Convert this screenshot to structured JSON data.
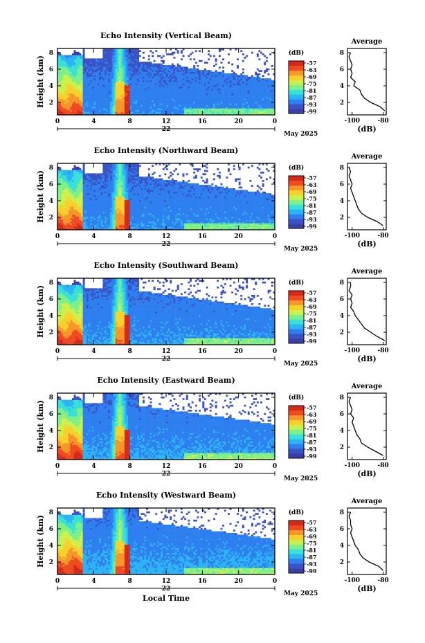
{
  "chart_data": {
    "type": "heatmap",
    "date_label": "May 2025",
    "day_label": "22",
    "xlabel_bottom": "Local Time",
    "x_ticks": [
      "0",
      "4",
      "8",
      "12",
      "16",
      "20",
      "0"
    ],
    "y_ticks": [
      "2",
      "4",
      "6",
      "8"
    ],
    "ylabel": "Height (km)",
    "ylim": [
      0.5,
      8.5
    ],
    "xlim": [
      0,
      24
    ],
    "colorbar_title": "(dB)",
    "colorbar_ticks": [
      "-57",
      "-63",
      "-69",
      "-75",
      "-81",
      "-87",
      "-93",
      "-99"
    ],
    "colorbar_colors": [
      "#3a3fa8",
      "#3a52c4",
      "#2e7ff0",
      "#2db4f2",
      "#39e0d8",
      "#7df08a",
      "#cdf04d",
      "#f7d02c",
      "#f7962a",
      "#ef4b22",
      "#d42a1a"
    ],
    "average_title": "Average",
    "average_xlabel": "(dB)",
    "average_xticks": [
      "-100",
      "-80"
    ],
    "average_xlim": [
      -103,
      -78
    ],
    "panels": [
      {
        "title": "Echo Intensity (Vertical Beam)",
        "average_profile": {
          "height_km": [
            1.0,
            1.5,
            2.0,
            2.5,
            3.0,
            3.5,
            4.0,
            4.5,
            5.0,
            5.5,
            6.0,
            6.5,
            7.0,
            7.5,
            8.0
          ],
          "db": [
            -79,
            -82,
            -88,
            -92,
            -94,
            -95,
            -99,
            -98,
            -101,
            -100,
            -101,
            -100,
            -101,
            -102,
            -101
          ]
        }
      },
      {
        "title": "Echo Intensity (Northward Beam)",
        "average_profile": {
          "height_km": [
            1.0,
            1.5,
            2.0,
            2.5,
            3.0,
            3.5,
            4.0,
            4.5,
            5.0,
            5.5,
            6.0,
            6.5,
            7.0,
            7.5,
            8.0
          ],
          "db": [
            -80,
            -84,
            -90,
            -94,
            -96,
            -97,
            -98,
            -99,
            -100,
            -101,
            -100,
            -101,
            -102,
            -101,
            -102
          ]
        }
      },
      {
        "title": "Echo Intensity (Southward Beam)",
        "average_profile": {
          "height_km": [
            1.0,
            1.5,
            2.0,
            2.5,
            3.0,
            3.5,
            4.0,
            4.5,
            5.0,
            5.5,
            6.0,
            6.5,
            7.0,
            7.5,
            8.0
          ],
          "db": [
            -79,
            -84,
            -88,
            -92,
            -94,
            -96,
            -98,
            -99,
            -101,
            -100,
            -101,
            -100,
            -102,
            -101,
            -101
          ]
        }
      },
      {
        "title": "Echo Intensity (Eastward Beam)",
        "average_profile": {
          "height_km": [
            1.0,
            1.5,
            2.0,
            2.5,
            3.0,
            3.5,
            4.0,
            4.5,
            5.0,
            5.5,
            6.0,
            6.5,
            7.0,
            7.5,
            8.0
          ],
          "db": [
            -80,
            -85,
            -90,
            -94,
            -95,
            -97,
            -98,
            -99,
            -100,
            -99,
            -101,
            -100,
            -101,
            -102,
            -101
          ]
        }
      },
      {
        "title": "Echo Intensity (Westward Beam)",
        "average_profile": {
          "height_km": [
            1.0,
            1.5,
            2.0,
            2.5,
            3.0,
            3.5,
            4.0,
            4.5,
            5.0,
            5.5,
            6.0,
            6.5,
            7.0,
            7.5,
            8.0
          ],
          "db": [
            -80,
            -83,
            -89,
            -93,
            -95,
            -96,
            -98,
            -99,
            -100,
            -101,
            -100,
            -101,
            -101,
            -102,
            -101
          ]
        }
      }
    ]
  }
}
